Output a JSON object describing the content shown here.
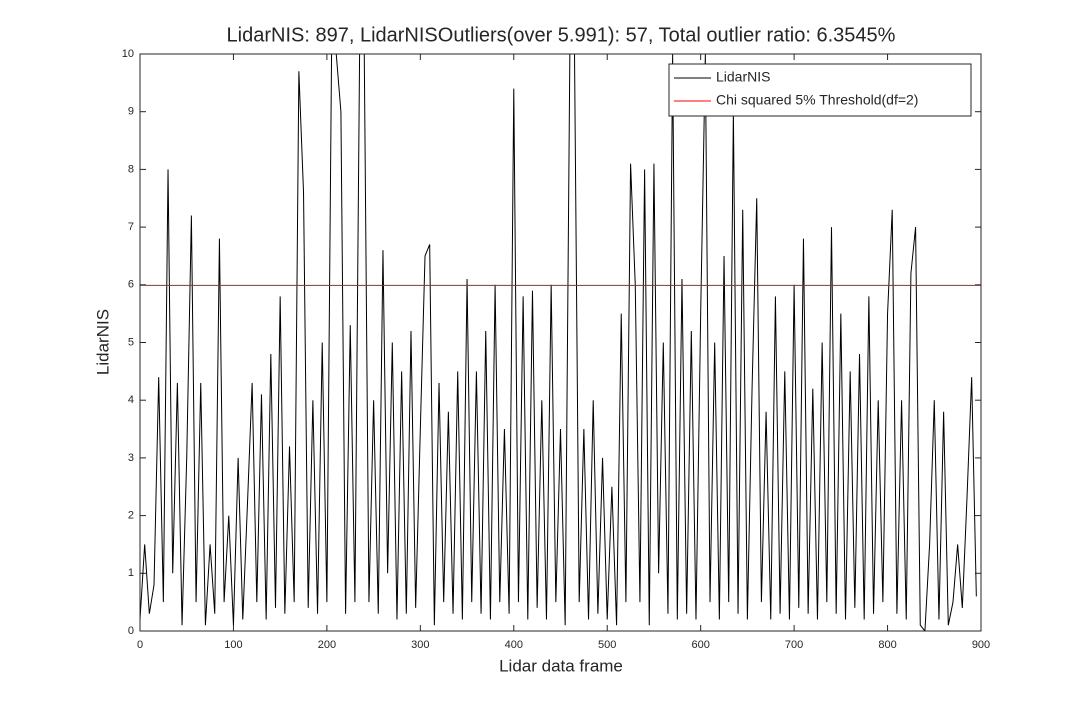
{
  "chart_data": {
    "type": "line",
    "title": "LidarNIS: 897, LidarNISOutliers(over 5.991): 57, Total outlier ratio: 6.3545%",
    "xlabel": "Lidar data frame",
    "ylabel": "LidarNIS",
    "xlim": [
      0,
      900
    ],
    "ylim": [
      0,
      10
    ],
    "xticks": [
      0,
      100,
      200,
      300,
      400,
      500,
      600,
      700,
      800,
      900
    ],
    "yticks": [
      0,
      1,
      2,
      3,
      4,
      5,
      6,
      7,
      8,
      9,
      10
    ],
    "legend": "northeast",
    "series": [
      {
        "name": "LidarNIS",
        "color": "#000000",
        "x": [
          0,
          5,
          10,
          15,
          20,
          25,
          30,
          35,
          40,
          45,
          50,
          55,
          60,
          65,
          70,
          75,
          80,
          85,
          90,
          95,
          100,
          105,
          110,
          115,
          120,
          125,
          130,
          135,
          140,
          145,
          150,
          155,
          160,
          165,
          170,
          175,
          180,
          185,
          190,
          195,
          200,
          205,
          210,
          215,
          220,
          225,
          230,
          235,
          240,
          245,
          250,
          255,
          260,
          265,
          270,
          275,
          280,
          285,
          290,
          295,
          300,
          305,
          310,
          315,
          320,
          325,
          330,
          335,
          340,
          345,
          350,
          355,
          360,
          365,
          370,
          375,
          380,
          385,
          390,
          395,
          400,
          405,
          410,
          415,
          420,
          425,
          430,
          435,
          440,
          445,
          450,
          455,
          460,
          465,
          470,
          475,
          480,
          485,
          490,
          495,
          500,
          505,
          510,
          515,
          520,
          525,
          530,
          535,
          540,
          545,
          550,
          555,
          560,
          565,
          570,
          575,
          580,
          585,
          590,
          595,
          600,
          605,
          610,
          615,
          620,
          625,
          630,
          635,
          640,
          645,
          650,
          655,
          660,
          665,
          670,
          675,
          680,
          685,
          690,
          695,
          700,
          705,
          710,
          715,
          720,
          725,
          730,
          735,
          740,
          745,
          750,
          755,
          760,
          765,
          770,
          775,
          780,
          785,
          790,
          795,
          800,
          805,
          810,
          815,
          820,
          825,
          830,
          835,
          840,
          845,
          850,
          855,
          860,
          865,
          870,
          875,
          880,
          885,
          890,
          895
        ],
        "values": [
          0.2,
          1.5,
          0.3,
          0.8,
          4.4,
          0.5,
          8.0,
          1.0,
          4.3,
          0.1,
          3.0,
          7.2,
          0.5,
          4.3,
          0.1,
          1.5,
          0.3,
          6.8,
          0.5,
          2.0,
          0.1,
          3.0,
          0.2,
          2.2,
          4.3,
          0.5,
          4.1,
          0.2,
          4.8,
          0.4,
          5.8,
          0.3,
          3.2,
          0.5,
          9.7,
          7.6,
          0.4,
          4.0,
          0.3,
          5.0,
          0.5,
          10,
          10,
          9.0,
          0.3,
          5.3,
          0.5,
          10,
          10,
          0.5,
          4.0,
          0.3,
          6.6,
          1.0,
          5.0,
          0.2,
          4.5,
          0.3,
          5.2,
          0.4,
          3.5,
          6.5,
          6.7,
          0.1,
          4.3,
          0.5,
          3.8,
          0.3,
          4.5,
          0.2,
          6.1,
          0.5,
          4.5,
          0.3,
          5.2,
          0.2,
          6.0,
          0.5,
          3.5,
          0.3,
          9.4,
          0.5,
          5.8,
          0.2,
          5.9,
          0.4,
          4.0,
          0.2,
          6.0,
          0.5,
          3.5,
          0.1,
          10,
          10,
          0.5,
          3.5,
          0.2,
          4.0,
          0.3,
          3.0,
          0.2,
          2.5,
          0.1,
          5.5,
          0.5,
          8.1,
          6.0,
          0.5,
          8.0,
          0.1,
          8.1,
          1.0,
          5.0,
          0.3,
          10,
          0.2,
          6.1,
          0.3,
          5.2,
          0.2,
          5.5,
          10,
          0.5,
          5.0,
          0.2,
          6.5,
          0.5,
          9.0,
          0.3,
          7.3,
          0.2,
          4.2,
          7.5,
          0.5,
          3.8,
          0.2,
          5.8,
          0.3,
          4.5,
          0.2,
          6.0,
          0.4,
          6.8,
          0.3,
          4.2,
          0.2,
          5.0,
          0.5,
          7.0,
          0.3,
          5.5,
          0.2,
          4.5,
          0.4,
          4.8,
          0.2,
          5.8,
          0.3,
          4.0,
          0.5,
          5.5,
          7.3,
          0.3,
          4.0,
          0.2,
          6.2,
          7.0,
          0.1,
          0,
          1.5,
          4.0,
          0.2,
          3.8,
          0.1,
          0.5,
          1.5,
          0.4,
          2.3,
          4.4,
          0.6
        ]
      },
      {
        "name": "Chi squared 5% Threshold(df=2)",
        "color": "#ff0000",
        "x": [
          0,
          900
        ],
        "values": [
          5.991,
          5.991
        ]
      }
    ]
  }
}
